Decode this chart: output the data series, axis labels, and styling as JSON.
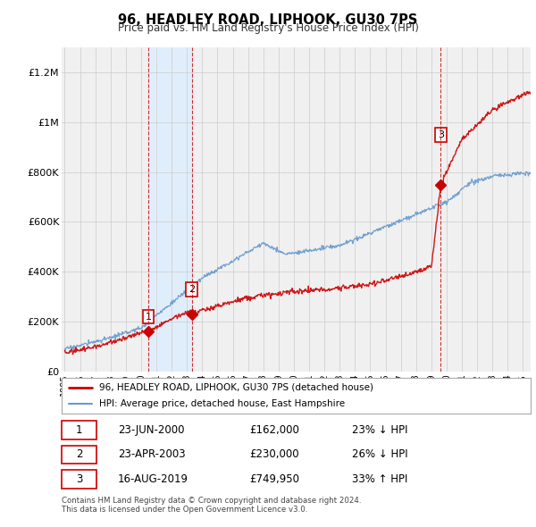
{
  "title": "96, HEADLEY ROAD, LIPHOOK, GU30 7PS",
  "subtitle": "Price paid vs. HM Land Registry's House Price Index (HPI)",
  "ylabel_ticks": [
    "£0",
    "£200K",
    "£400K",
    "£600K",
    "£800K",
    "£1M",
    "£1.2M"
  ],
  "ylim": [
    0,
    1300000
  ],
  "yticks": [
    0,
    200000,
    400000,
    600000,
    800000,
    1000000,
    1200000
  ],
  "xlim_start": 1994.8,
  "xlim_end": 2025.5,
  "sale_dates": [
    2000.47,
    2003.31,
    2019.62
  ],
  "sale_prices": [
    162000,
    230000,
    749950
  ],
  "sale_labels": [
    "1",
    "2",
    "3"
  ],
  "transaction_1": {
    "date": "23-JUN-2000",
    "price": "£162,000",
    "change": "23% ↓ HPI"
  },
  "transaction_2": {
    "date": "23-APR-2003",
    "price": "£230,000",
    "change": "26% ↓ HPI"
  },
  "transaction_3": {
    "date": "16-AUG-2019",
    "price": "£749,950",
    "change": "33% ↑ HPI"
  },
  "legend_line1": "96, HEADLEY ROAD, LIPHOOK, GU30 7PS (detached house)",
  "legend_line2": "HPI: Average price, detached house, East Hampshire",
  "footer": "Contains HM Land Registry data © Crown copyright and database right 2024.\nThis data is licensed under the Open Government Licence v3.0.",
  "line_color_red": "#cc0000",
  "line_color_blue": "#6699cc",
  "band_color": "#ddeeff",
  "vline_color": "#cc0000",
  "background_chart": "#f0f0f0",
  "background_fig": "#ffffff",
  "grid_color": "#cccccc"
}
